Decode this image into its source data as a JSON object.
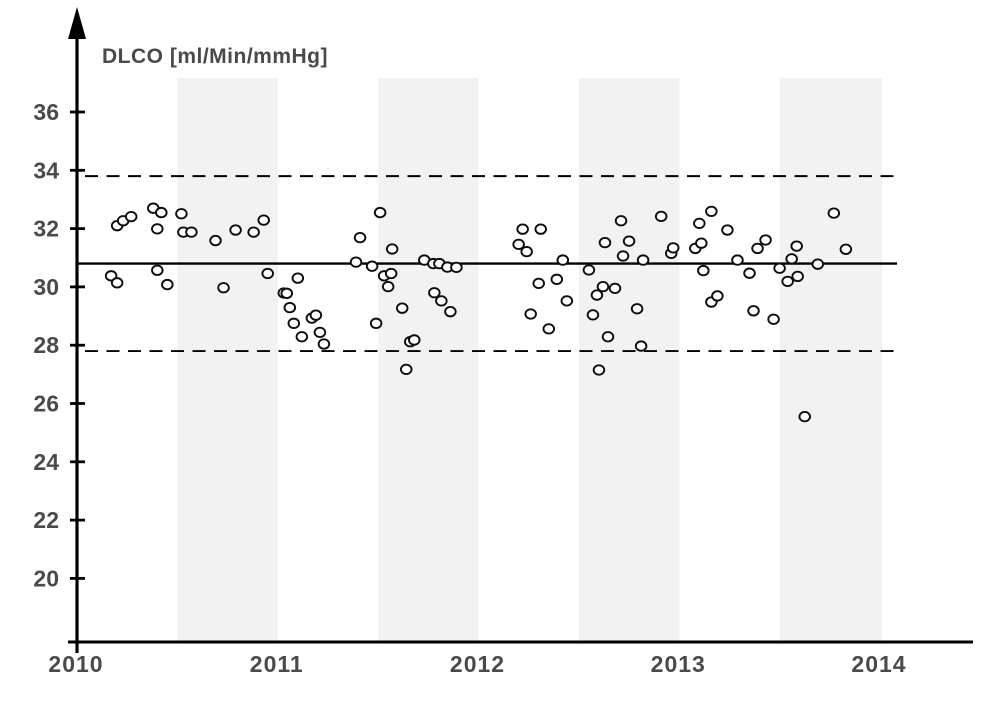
{
  "chart_data": {
    "type": "scatter",
    "title": "DLCO [ml/Min/mmHg]",
    "xlabel": "",
    "ylabel": "DLCO [ml/Min/mmHg]",
    "x_ticks": [
      2010,
      2011,
      2012,
      2013,
      2014
    ],
    "y_ticks": [
      36,
      34,
      32,
      30,
      28,
      26,
      24,
      22,
      20
    ],
    "xlim": [
      2010,
      2014.47
    ],
    "ylim": [
      17.8,
      39.6
    ],
    "grid": false,
    "legend": "none",
    "center_line": 30.8,
    "upper_control_limit": 33.8,
    "lower_control_limit": 27.8,
    "shaded_bands_x": [
      [
        2010.5,
        2011.0
      ],
      [
        2011.5,
        2012.0
      ],
      [
        2012.5,
        2013.0
      ],
      [
        2013.5,
        2014.01
      ]
    ],
    "points": [
      [
        2010.17,
        30.38
      ],
      [
        2010.2,
        32.1
      ],
      [
        2010.2,
        30.14
      ],
      [
        2010.23,
        32.27
      ],
      [
        2010.27,
        32.41
      ],
      [
        2010.38,
        32.7
      ],
      [
        2010.4,
        31.99
      ],
      [
        2010.4,
        30.57
      ],
      [
        2010.42,
        32.55
      ],
      [
        2010.45,
        30.08
      ],
      [
        2010.52,
        32.51
      ],
      [
        2010.53,
        31.88
      ],
      [
        2010.57,
        31.88
      ],
      [
        2010.69,
        31.59
      ],
      [
        2010.73,
        29.97
      ],
      [
        2010.79,
        31.95
      ],
      [
        2010.88,
        31.88
      ],
      [
        2010.93,
        32.29
      ],
      [
        2010.95,
        30.46
      ],
      [
        2011.03,
        29.79
      ],
      [
        2011.045,
        29.78
      ],
      [
        2011.06,
        29.29
      ],
      [
        2011.08,
        28.75
      ],
      [
        2011.1,
        30.3
      ],
      [
        2011.12,
        28.29
      ],
      [
        2011.17,
        28.93
      ],
      [
        2011.19,
        29.03
      ],
      [
        2011.21,
        28.44
      ],
      [
        2011.23,
        28.04
      ],
      [
        2011.39,
        30.85
      ],
      [
        2011.41,
        31.69
      ],
      [
        2011.47,
        30.71
      ],
      [
        2011.49,
        28.75
      ],
      [
        2011.51,
        32.55
      ],
      [
        2011.53,
        30.38
      ],
      [
        2011.55,
        30.01
      ],
      [
        2011.565,
        30.46
      ],
      [
        2011.57,
        31.3
      ],
      [
        2011.62,
        29.27
      ],
      [
        2011.64,
        27.17
      ],
      [
        2011.66,
        28.12
      ],
      [
        2011.68,
        28.18
      ],
      [
        2011.73,
        30.92
      ],
      [
        2011.775,
        30.8
      ],
      [
        2011.78,
        29.8
      ],
      [
        2011.805,
        30.8
      ],
      [
        2011.815,
        29.52
      ],
      [
        2011.845,
        30.68
      ],
      [
        2011.86,
        29.15
      ],
      [
        2011.89,
        30.67
      ],
      [
        2012.2,
        31.46
      ],
      [
        2012.22,
        31.98
      ],
      [
        2012.24,
        31.21
      ],
      [
        2012.26,
        29.07
      ],
      [
        2012.3,
        30.12
      ],
      [
        2012.31,
        31.98
      ],
      [
        2012.35,
        28.56
      ],
      [
        2012.39,
        30.26
      ],
      [
        2012.42,
        30.92
      ],
      [
        2012.44,
        29.52
      ],
      [
        2012.55,
        30.58
      ],
      [
        2012.57,
        29.04
      ],
      [
        2012.59,
        29.72
      ],
      [
        2012.6,
        27.15
      ],
      [
        2012.62,
        30.01
      ],
      [
        2012.63,
        31.52
      ],
      [
        2012.645,
        28.29
      ],
      [
        2012.68,
        29.95
      ],
      [
        2012.71,
        32.27
      ],
      [
        2012.72,
        31.06
      ],
      [
        2012.75,
        31.57
      ],
      [
        2012.79,
        29.25
      ],
      [
        2012.81,
        27.97
      ],
      [
        2012.82,
        30.92
      ],
      [
        2012.91,
        32.42
      ],
      [
        2012.96,
        31.15
      ],
      [
        2012.97,
        31.34
      ],
      [
        2013.08,
        31.32
      ],
      [
        2013.1,
        32.18
      ],
      [
        2013.11,
        31.5
      ],
      [
        2013.12,
        30.56
      ],
      [
        2013.16,
        32.59
      ],
      [
        2013.16,
        29.48
      ],
      [
        2013.19,
        29.69
      ],
      [
        2013.24,
        31.95
      ],
      [
        2013.29,
        30.92
      ],
      [
        2013.35,
        30.47
      ],
      [
        2013.37,
        29.18
      ],
      [
        2013.39,
        31.32
      ],
      [
        2013.43,
        31.61
      ],
      [
        2013.47,
        28.89
      ],
      [
        2013.5,
        30.64
      ],
      [
        2013.54,
        30.19
      ],
      [
        2013.56,
        30.96
      ],
      [
        2013.585,
        31.4
      ],
      [
        2013.59,
        30.36
      ],
      [
        2013.625,
        25.55
      ],
      [
        2013.69,
        30.78
      ],
      [
        2013.77,
        32.53
      ],
      [
        2013.83,
        31.29
      ]
    ]
  },
  "colors": {
    "background": "#ffffff",
    "band": "#f2f2f2",
    "axis": "#000000",
    "label_text": "#4a4a4a",
    "line": "#000000",
    "point_stroke": "#0d0d0d",
    "point_fill": "#ffffff"
  }
}
